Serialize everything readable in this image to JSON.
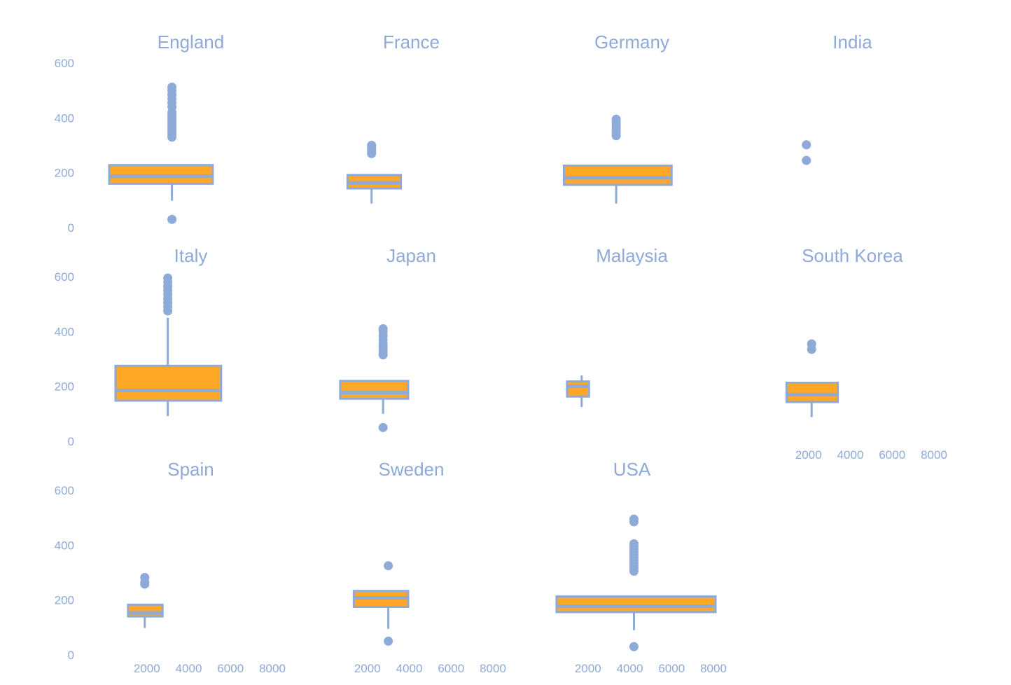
{
  "chart_data": {
    "type": "boxplot",
    "facet_layout": {
      "columns": 4,
      "rows": 3
    },
    "ylim": [
      0,
      600
    ],
    "xlim": [
      0,
      8000
    ],
    "y_ticks": [
      0,
      200,
      400,
      600
    ],
    "x_ticks": [
      2000,
      4000,
      6000,
      8000
    ],
    "grid": false,
    "colors": {
      "box_fill": "#ffa726",
      "stroke": "#8eaad8",
      "text": "#8eaad8"
    },
    "facets": [
      {
        "title": "England",
        "boxes": [
          {
            "x": 3200,
            "x_left": 200,
            "x_right": 5150,
            "whisker_low": 98,
            "q1": 160,
            "median": 187,
            "q3": 228,
            "whisker_high": 228,
            "outliers": [
              30,
              330,
              340,
              350,
              360,
              370,
              380,
              390,
              400,
              410,
              420,
              440,
              455,
              470,
              485,
              500,
              512
            ]
          }
        ]
      },
      {
        "title": "France",
        "boxes": [
          {
            "x": 2200,
            "x_left": 1050,
            "x_right": 3600,
            "whisker_low": 88,
            "q1": 143,
            "median": 163,
            "q3": 192,
            "whisker_high": 192,
            "outliers": [
              270,
              278,
              285,
              292,
              300
            ]
          }
        ]
      },
      {
        "title": "Germany",
        "boxes": [
          {
            "x": 3350,
            "x_left": 850,
            "x_right": 6000,
            "whisker_low": 88,
            "q1": 156,
            "median": 182,
            "q3": 226,
            "whisker_high": 226,
            "outliers": [
              335,
              345,
              355,
              365,
              375,
              385,
              395
            ]
          }
        ]
      },
      {
        "title": "India",
        "boxes": [
          {
            "x": 1900,
            "x_left": 1900,
            "x_right": 1900,
            "whisker_low": null,
            "q1": null,
            "median": null,
            "q3": null,
            "whisker_high": null,
            "outliers": [
              245,
              302
            ]
          }
        ]
      },
      {
        "title": "Italy",
        "boxes": [
          {
            "x": 3000,
            "x_left": 500,
            "x_right": 5550,
            "whisker_low": 92,
            "q1": 148,
            "median": 185,
            "q3": 275,
            "whisker_high": 450,
            "outliers": [
              475,
              490,
              505,
              520,
              535,
              550,
              565,
              580,
              595
            ]
          }
        ]
      },
      {
        "title": "Japan",
        "boxes": [
          {
            "x": 2750,
            "x_left": 700,
            "x_right": 3950,
            "whisker_low": 100,
            "q1": 155,
            "median": 177,
            "q3": 220,
            "whisker_high": 220,
            "outliers": [
              50,
              315,
              325,
              335,
              345,
              355,
              370,
              385,
              400,
              410
            ]
          }
        ]
      },
      {
        "title": "Malaysia",
        "boxes": [
          {
            "x": 1700,
            "x_left": 1000,
            "x_right": 2050,
            "whisker_low": 125,
            "q1": 163,
            "median": 200,
            "q3": 218,
            "whisker_high": 240,
            "outliers": []
          }
        ]
      },
      {
        "title": "South Korea",
        "boxes": [
          {
            "x": 2150,
            "x_left": 950,
            "x_right": 3400,
            "whisker_low": 88,
            "q1": 143,
            "median": 170,
            "q3": 213,
            "whisker_high": 213,
            "outliers": [
              335,
              355
            ]
          }
        ]
      },
      {
        "title": "Spain",
        "boxes": [
          {
            "x": 1900,
            "x_left": 1100,
            "x_right": 2750,
            "whisker_low": 98,
            "q1": 140,
            "median": 153,
            "q3": 183,
            "whisker_high": 183,
            "outliers": [
              258,
              265,
              282
            ]
          }
        ]
      },
      {
        "title": "Sweden",
        "boxes": [
          {
            "x": 3000,
            "x_left": 1350,
            "x_right": 3950,
            "whisker_low": 95,
            "q1": 175,
            "median": 208,
            "q3": 233,
            "whisker_high": 233,
            "outliers": [
              50,
              325
            ]
          }
        ]
      },
      {
        "title": "USA",
        "boxes": [
          {
            "x": 4200,
            "x_left": 500,
            "x_right": 8100,
            "whisker_low": 90,
            "q1": 156,
            "median": 177,
            "q3": 213,
            "whisker_high": 213,
            "outliers": [
              30,
              305,
              315,
              325,
              335,
              345,
              355,
              365,
              375,
              385,
              395,
              405,
              485,
              495
            ]
          }
        ]
      }
    ]
  }
}
